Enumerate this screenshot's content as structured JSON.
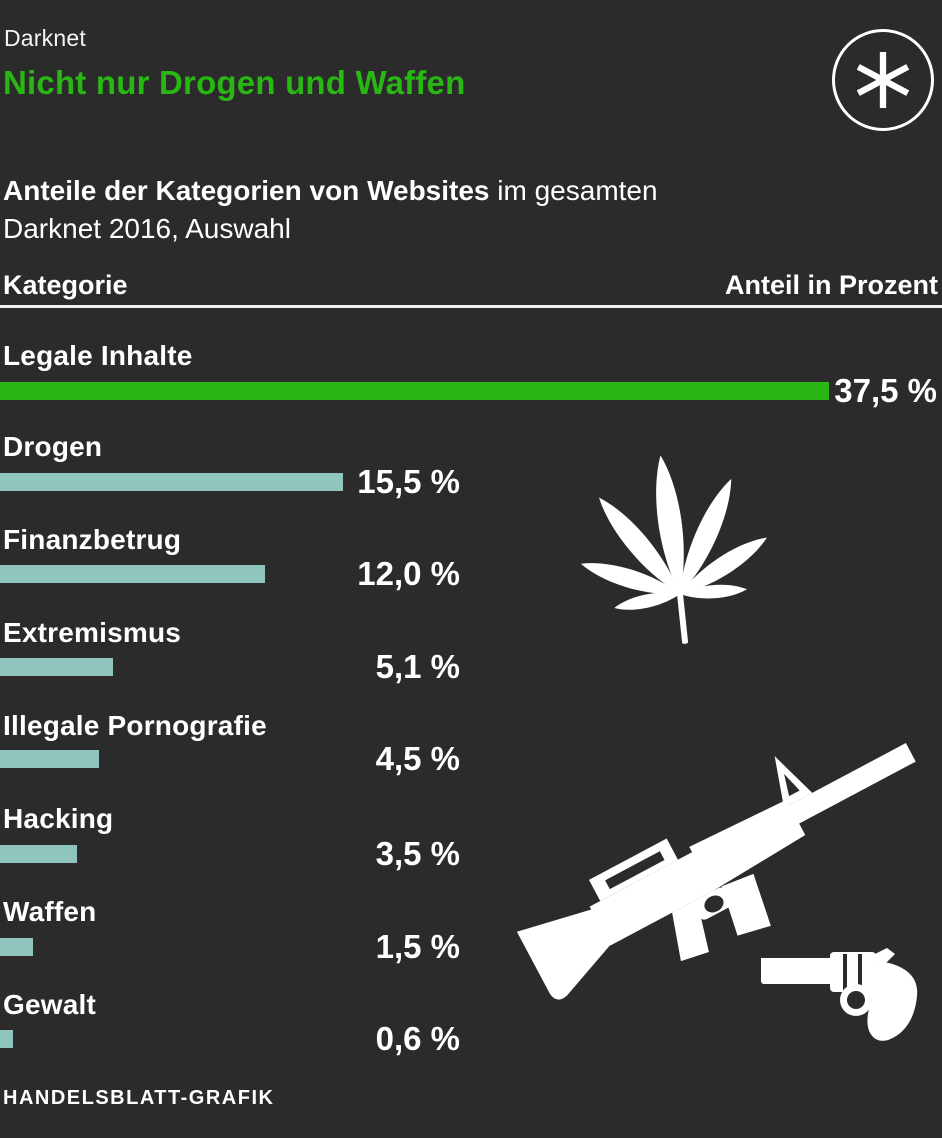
{
  "page": {
    "kicker": "Darknet",
    "title": "Nicht nur Drogen und Waffen",
    "subtitle_bold": "Anteile der Kategorien von Websites",
    "subtitle_rest": " im gesamten",
    "subtitle_line2": "Darknet 2016, Auswahl",
    "source": "HANDELSBLATT-GRAFIK"
  },
  "table_header": {
    "left": "Kategorie",
    "right": "Anteil in Prozent"
  },
  "colors": {
    "background": "#2b2b2b",
    "accent_green": "#29b714",
    "bar_teal": "#8fc5bc",
    "text": "#ffffff",
    "divider": "#f2f2f2"
  },
  "icons": {
    "logo": "handelsblatt-asterisk-icon",
    "drugs": "cannabis-leaf-icon",
    "weapons_rifle": "rifle-icon",
    "weapons_revolver": "revolver-icon"
  },
  "chart_data": {
    "type": "bar",
    "orientation": "horizontal",
    "title": "Nicht nur Drogen und Waffen",
    "subtitle": "Anteile der Kategorien von Websites im gesamten Darknet 2016, Auswahl",
    "xlabel": "Anteil in Prozent",
    "ylabel": "Kategorie",
    "xlim": [
      0,
      37.5
    ],
    "grid": false,
    "legend": "none",
    "categories": [
      "Legale Inhalte",
      "Drogen",
      "Finanzbetrug",
      "Extremismus",
      "Illegale Pornografie",
      "Hacking",
      "Waffen",
      "Gewalt"
    ],
    "values": [
      37.5,
      15.5,
      12.0,
      5.1,
      4.5,
      3.5,
      1.5,
      0.6
    ],
    "value_labels": [
      "37,5 %",
      "15,5 %",
      "12,0 %",
      "5,1 %",
      "4,5 %",
      "3,5 %",
      "1,5 %",
      "0,6 %"
    ],
    "highlight_index": 0,
    "bar_colors": {
      "highlight": "#29b714",
      "default": "#8fc5bc"
    },
    "source": "HANDELSBLATT-GRAFIK"
  }
}
